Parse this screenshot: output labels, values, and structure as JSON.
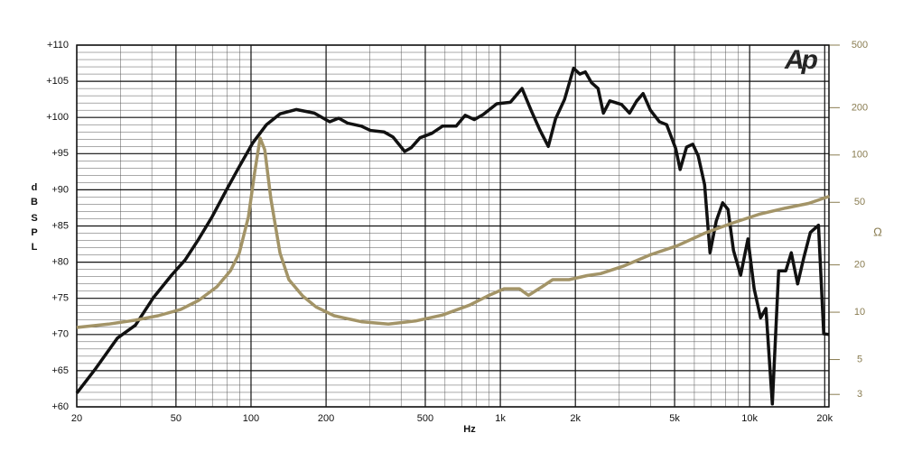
{
  "chart_data": {
    "type": "line",
    "logo": "Ap",
    "xlabel": "Hz",
    "ylabel": "dB SPL",
    "y2label": "Ω",
    "xscale": "log",
    "y2scale": "log",
    "grid": true,
    "minor_grid": true,
    "xlim": [
      20,
      20800
    ],
    "xticks": [
      20,
      50,
      100,
      200,
      500,
      {
        "value": 1000,
        "label": "1k"
      },
      {
        "value": 2000,
        "label": "2k"
      },
      {
        "value": 5000,
        "label": "5k"
      },
      {
        "value": 10000,
        "label": "10k"
      },
      {
        "value": 20000,
        "label": "20k"
      }
    ],
    "ylim": [
      60,
      110
    ],
    "yticks": [
      {
        "value": 60,
        "label": "+60"
      },
      {
        "value": 65,
        "label": "+65"
      },
      {
        "value": 70,
        "label": "+70"
      },
      {
        "value": 75,
        "label": "+75"
      },
      {
        "value": 80,
        "label": "+80"
      },
      {
        "value": 85,
        "label": "+85"
      },
      {
        "value": 90,
        "label": "+90"
      },
      {
        "value": 95,
        "label": "+95"
      },
      {
        "value": 100,
        "label": "+100"
      },
      {
        "value": 105,
        "label": "+105"
      },
      {
        "value": 110,
        "label": "+110"
      }
    ],
    "y2lim": [
      2.5,
      500
    ],
    "y2ticks": [
      3,
      5,
      10,
      20,
      50,
      100,
      200,
      500
    ],
    "series": [
      {
        "color": "#111111",
        "axis": "y",
        "x": [
          20,
          23.6,
          29.1,
          34.4,
          40.6,
          48,
          54.4,
          61.7,
          69.9,
          79.2,
          89.7,
          101.7,
          115.3,
          130.7,
          151.8,
          179.4,
          206.7,
          224.8,
          244.4,
          276.8,
          301.3,
          341.3,
          370.9,
          413.2,
          438.4,
          476.6,
          531.1,
          586.3,
          665,
          722.8,
          785.7,
          853.1,
          968.2,
          1097,
          1222,
          1328,
          1444,
          1557,
          1665,
          1810,
          1967,
          2084,
          2193,
          2323,
          2466,
          2590,
          2748,
          3062,
          3300,
          3526,
          3739,
          3999,
          4348,
          4648,
          5050,
          5263,
          5581,
          5915,
          6220,
          6597,
          6935,
          7349,
          7797,
          8187,
          8611,
          9204,
          9843,
          10430,
          11060,
          11620,
          12330,
          13070,
          13960,
          14690,
          15570,
          16510,
          17510,
          18880,
          19820,
          20850
        ],
        "values": [
          61.9,
          65.1,
          69.5,
          71.3,
          75.1,
          78.2,
          80.3,
          83.2,
          86.3,
          89.8,
          93.2,
          96.5,
          99,
          100.5,
          101.1,
          100.6,
          99.4,
          99.9,
          99.2,
          98.8,
          98.2,
          98,
          97.3,
          95.3,
          95.8,
          97.2,
          97.8,
          98.8,
          98.8,
          100.3,
          99.7,
          100.4,
          101.9,
          102.1,
          104,
          101,
          98.2,
          96,
          99.8,
          102.5,
          106.8,
          106,
          106.3,
          104.8,
          104,
          100.6,
          102.3,
          101.8,
          100.6,
          102.3,
          103.3,
          101,
          99.4,
          99,
          95.7,
          92.8,
          95.9,
          96.3,
          94.7,
          90.7,
          81.3,
          85.7,
          88.2,
          87.3,
          81.6,
          78.2,
          83.2,
          76.3,
          72.3,
          73.6,
          60.4,
          78.8,
          78.8,
          81.3,
          77,
          80.7,
          84.1,
          85.1,
          70.1,
          70
        ]
      },
      {
        "color": "#a39467",
        "axis": "y2",
        "x": [
          20,
          26.8,
          34.4,
          42.4,
          52.2,
          61.7,
          72.9,
          82.6,
          89.7,
          97.6,
          103.5,
          108.8,
          113.5,
          120.2,
          130.7,
          141.9,
          161,
          182.4,
          215.6,
          276.8,
          355.7,
          457.2,
          586.3,
          753.4,
          891,
          1035,
          1192,
          1297,
          1468,
          1622,
          1886,
          2229,
          2524,
          3112,
          3999,
          5131,
          6597,
          8470,
          10890,
          13960,
          17220,
          20850
        ],
        "values": [
          8,
          8.4,
          8.9,
          9.5,
          10.4,
          11.9,
          14.5,
          18.3,
          23.8,
          40.4,
          78,
          128,
          108,
          52.5,
          23.8,
          16.1,
          12.7,
          10.8,
          9.5,
          8.7,
          8.4,
          8.8,
          9.6,
          11.1,
          12.7,
          14.1,
          14.1,
          12.8,
          14.5,
          16.1,
          16.1,
          17.1,
          17.6,
          19.6,
          23.2,
          26.5,
          31.8,
          36.8,
          41.9,
          46,
          49.2,
          54.6
        ]
      }
    ]
  }
}
